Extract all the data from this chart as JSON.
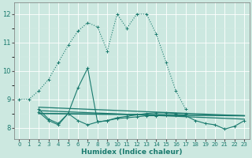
{
  "xlabel": "Humidex (Indice chaleur)",
  "bg_color": "#cce8e0",
  "grid_color": "#b8d8d0",
  "line_color": "#1a7a6e",
  "xlim": [
    -0.5,
    23.5
  ],
  "ylim": [
    7.6,
    12.4
  ],
  "yticks": [
    8,
    9,
    10,
    11,
    12
  ],
  "xticks": [
    0,
    1,
    2,
    3,
    4,
    5,
    6,
    7,
    8,
    9,
    10,
    11,
    12,
    13,
    14,
    15,
    16,
    17,
    18,
    19,
    20,
    21,
    22,
    23
  ],
  "dotted_line": {
    "x": [
      0,
      1,
      2,
      3,
      4,
      5,
      6,
      7,
      8,
      9,
      10,
      11,
      12,
      13,
      14,
      15,
      16,
      17
    ],
    "y": [
      9.0,
      9.0,
      9.3,
      9.7,
      10.3,
      10.9,
      11.4,
      11.7,
      11.55,
      10.7,
      12.0,
      11.5,
      12.0,
      12.0,
      11.3,
      10.3,
      9.3,
      8.65
    ]
  },
  "solid_marker_line": {
    "x": [
      2,
      3,
      4,
      5,
      6,
      7,
      8,
      9,
      10,
      11,
      12,
      13,
      14,
      15,
      16,
      17
    ],
    "y": [
      8.65,
      8.3,
      8.15,
      8.5,
      9.4,
      10.1,
      8.2,
      8.25,
      8.35,
      8.4,
      8.45,
      8.5,
      8.52,
      8.52,
      8.5,
      8.5
    ]
  },
  "flat_marker_line1": {
    "x": [
      2,
      3,
      4,
      5,
      6,
      7,
      8,
      9,
      10,
      11,
      12,
      13,
      14,
      15,
      16,
      17,
      18,
      19,
      20,
      21,
      22,
      23
    ],
    "y": [
      8.55,
      8.25,
      8.1,
      8.5,
      8.25,
      8.1,
      8.2,
      8.25,
      8.32,
      8.35,
      8.38,
      8.42,
      8.42,
      8.43,
      8.43,
      8.42,
      8.25,
      8.15,
      8.1,
      7.95,
      8.05,
      8.25
    ]
  },
  "trend_line1": {
    "x": [
      2,
      23
    ],
    "y": [
      8.72,
      8.42
    ]
  },
  "trend_line2": {
    "x": [
      2,
      23
    ],
    "y": [
      8.6,
      8.3
    ]
  },
  "trend_line3": {
    "x": [
      2,
      23
    ],
    "y": [
      8.5,
      8.42
    ]
  }
}
